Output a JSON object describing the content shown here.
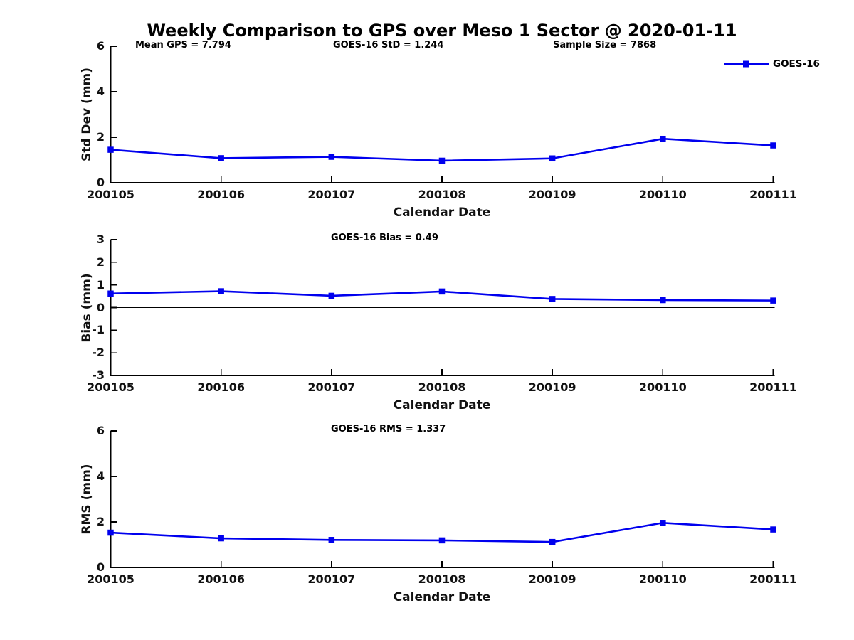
{
  "figure_title": "Weekly Comparison to GPS over Meso 1 Sector @ 2020-01-11",
  "stats_row": {
    "mean_gps": "Mean GPS = 7.794",
    "goes16_std": "GOES-16 StD = 1.244",
    "sample_size": "Sample Size = 7868"
  },
  "legend": {
    "entries": [
      "GOES-16"
    ],
    "position": "upper-right-of-first-subplot"
  },
  "colors": {
    "series_line": "#0000ee",
    "axis": "#000000",
    "zero_line": "#000000",
    "text": "#000000",
    "background": "#ffffff"
  },
  "chart_data": [
    {
      "type": "line",
      "title": "",
      "ylabel": "Std Dev (mm)",
      "xlabel": "Calendar Date",
      "categories": [
        "200105",
        "200106",
        "200107",
        "200108",
        "200109",
        "200110",
        "200111"
      ],
      "series": [
        {
          "name": "GOES-16",
          "values": [
            1.45,
            1.08,
            1.14,
            0.97,
            1.07,
            1.93,
            1.64
          ]
        }
      ],
      "ylim": [
        0,
        6
      ],
      "yticks": [
        0,
        2,
        4,
        6
      ],
      "grid": false,
      "marker": "square",
      "zero_line": false
    },
    {
      "type": "line",
      "title": "GOES-16 Bias  = 0.49",
      "ylabel": "Bias (mm)",
      "xlabel": "Calendar Date",
      "categories": [
        "200105",
        "200106",
        "200107",
        "200108",
        "200109",
        "200110",
        "200111"
      ],
      "series": [
        {
          "name": "GOES-16",
          "values": [
            0.62,
            0.72,
            0.52,
            0.71,
            0.38,
            0.33,
            0.31
          ]
        }
      ],
      "ylim": [
        -3,
        3
      ],
      "yticks": [
        -3,
        -2,
        -1,
        0,
        1,
        2,
        3
      ],
      "grid": false,
      "marker": "square",
      "zero_line": true
    },
    {
      "type": "line",
      "title": "GOES-16 RMS = 1.337",
      "ylabel": "RMS (mm)",
      "xlabel": "Calendar Date",
      "categories": [
        "200105",
        "200106",
        "200107",
        "200108",
        "200109",
        "200110",
        "200111"
      ],
      "series": [
        {
          "name": "GOES-16",
          "values": [
            1.53,
            1.28,
            1.21,
            1.19,
            1.12,
            1.96,
            1.67
          ]
        }
      ],
      "ylim": [
        0,
        6
      ],
      "yticks": [
        0,
        2,
        4,
        6
      ],
      "grid": false,
      "marker": "square",
      "zero_line": false
    }
  ]
}
